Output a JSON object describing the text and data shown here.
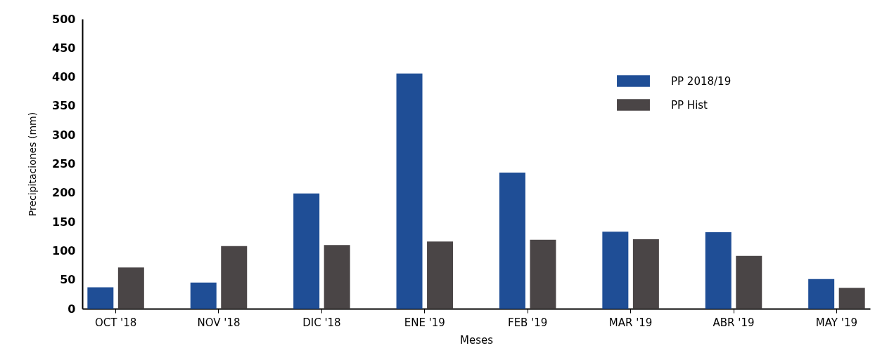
{
  "chart_data": {
    "type": "bar",
    "xlabel": "Meses",
    "ylabel": "Precipitaciones (mm)",
    "categories": [
      "OCT '18",
      "NOV '18",
      "DIC '18",
      "ENE '19",
      "FEB '19",
      "MAR '19",
      "ABR '19",
      "MAY '19"
    ],
    "series": [
      {
        "name": "PP 2018/19",
        "color": "#1f4e96",
        "values": [
          37,
          45,
          199,
          406,
          235,
          133,
          132,
          51
        ]
      },
      {
        "name": "PP Hist",
        "color": "#4a4546",
        "values": [
          71,
          108,
          110,
          116,
          119,
          120,
          91,
          36
        ]
      }
    ],
    "ylim": [
      0,
      500
    ],
    "yticks": [
      0,
      50,
      100,
      150,
      200,
      250,
      300,
      350,
      400,
      450,
      500
    ],
    "grid": false,
    "legend": "top right"
  }
}
